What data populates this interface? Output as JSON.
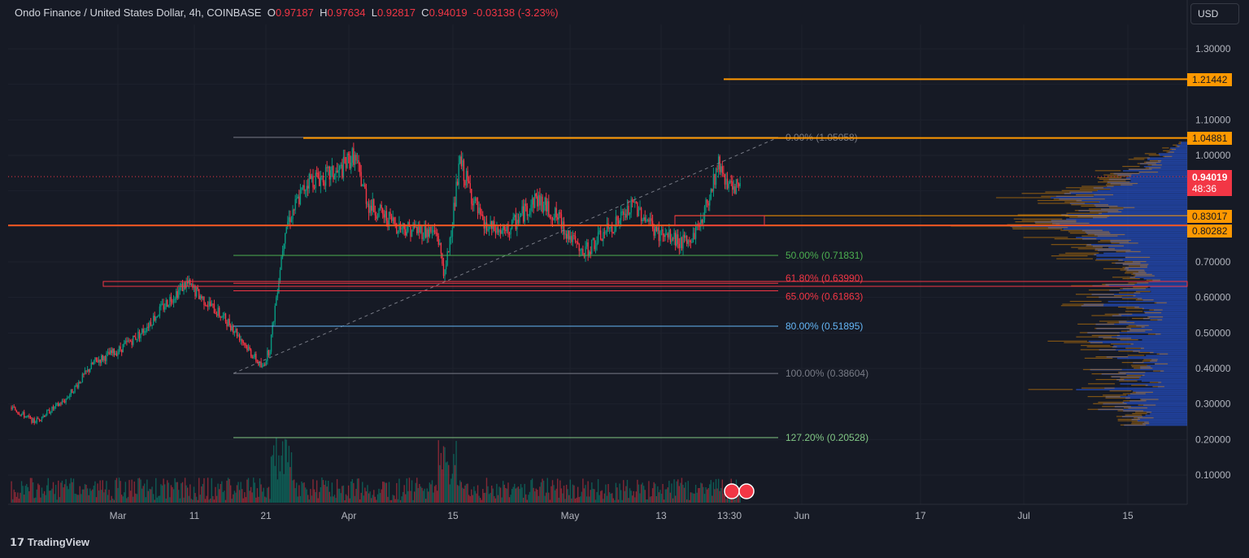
{
  "header": {
    "symbol": "Ondo Finance / United States Dollar, 4h, COINBASE",
    "o_label": "O",
    "o": "0.97187",
    "h_label": "H",
    "h": "0.97634",
    "l_label": "L",
    "l": "0.92817",
    "c_label": "C",
    "c": "0.94019",
    "change": "-0.03138 (-3.23%)"
  },
  "currency_button": "USD",
  "price_tags": {
    "level_top": "1.21442",
    "level_res": "1.04881",
    "current": "0.94019",
    "countdown": "48:36",
    "level_mid": "0.83017",
    "level_sup": "0.80282"
  },
  "colors": {
    "up": "#089981",
    "down": "#f23645",
    "orange": "#ff9800",
    "red_line": "#f23645",
    "bg": "#161a25"
  },
  "branding": "TradingView",
  "chart_data": {
    "type": "candlestick",
    "price_axis": {
      "ticks": [
        "1.30000",
        "1.10000",
        "1.00000",
        "0.70000",
        "0.60000",
        "0.50000",
        "0.40000",
        "0.30000",
        "0.20000",
        "0.10000"
      ],
      "range": [
        0.05,
        1.35
      ]
    },
    "time_axis": {
      "ticks": [
        "Mar",
        "11",
        "21",
        "Apr",
        "15",
        "May",
        "13",
        "13:30",
        "Jun",
        "17",
        "Jul",
        "15"
      ]
    },
    "price_path": [
      [
        "Feb16",
        0.29
      ],
      [
        "Feb19",
        0.25
      ],
      [
        "Feb23",
        0.31
      ],
      [
        "Feb27",
        0.42
      ],
      [
        "Mar1",
        0.45
      ],
      [
        "Mar4",
        0.5
      ],
      [
        "Mar8",
        0.6
      ],
      [
        "Mar10",
        0.64
      ],
      [
        "Mar13",
        0.58
      ],
      [
        "Mar16",
        0.52
      ],
      [
        "Mar20",
        0.4
      ],
      [
        "Mar21",
        0.46
      ],
      [
        "Mar23",
        0.8
      ],
      [
        "Mar26",
        0.93
      ],
      [
        "Mar30",
        0.95
      ],
      [
        "Apr1",
        1.0
      ],
      [
        "Apr3",
        0.86
      ],
      [
        "Apr7",
        0.8
      ],
      [
        "Apr12",
        0.78
      ],
      [
        "Apr13",
        0.66
      ],
      [
        "Apr14",
        0.82
      ],
      [
        "Apr15",
        0.98
      ],
      [
        "Apr18",
        0.8
      ],
      [
        "Apr21",
        0.78
      ],
      [
        "Apr25",
        0.88
      ],
      [
        "Apr28",
        0.82
      ],
      [
        "May1",
        0.72
      ],
      [
        "May4",
        0.78
      ],
      [
        "May8",
        0.86
      ],
      [
        "May11",
        0.78
      ],
      [
        "May15",
        0.75
      ],
      [
        "May17",
        0.83
      ],
      [
        "May19",
        0.98
      ],
      [
        "May21",
        0.89
      ],
      [
        "May22",
        0.94
      ]
    ],
    "fib_levels": [
      {
        "label": "0.00% (1.05058)",
        "price": 1.05058,
        "color": "#787b86"
      },
      {
        "label": "50.00% (0.71831)",
        "price": 0.71831,
        "color": "#4caf50"
      },
      {
        "label": "61.80% (0.63990)",
        "price": 0.6399,
        "color": "#f23645"
      },
      {
        "label": "65.00% (0.61863)",
        "price": 0.61863,
        "color": "#f23645"
      },
      {
        "label": "80.00% (0.51895)",
        "price": 0.51895,
        "color": "#64b5f6"
      },
      {
        "label": "100.00% (0.38604)",
        "price": 0.38604,
        "color": "#787b86"
      },
      {
        "label": "127.20% (0.20528)",
        "price": 0.20528,
        "color": "#81c784"
      }
    ],
    "horizontal_levels": [
      1.21442,
      1.04881,
      0.83017,
      0.80282
    ]
  }
}
